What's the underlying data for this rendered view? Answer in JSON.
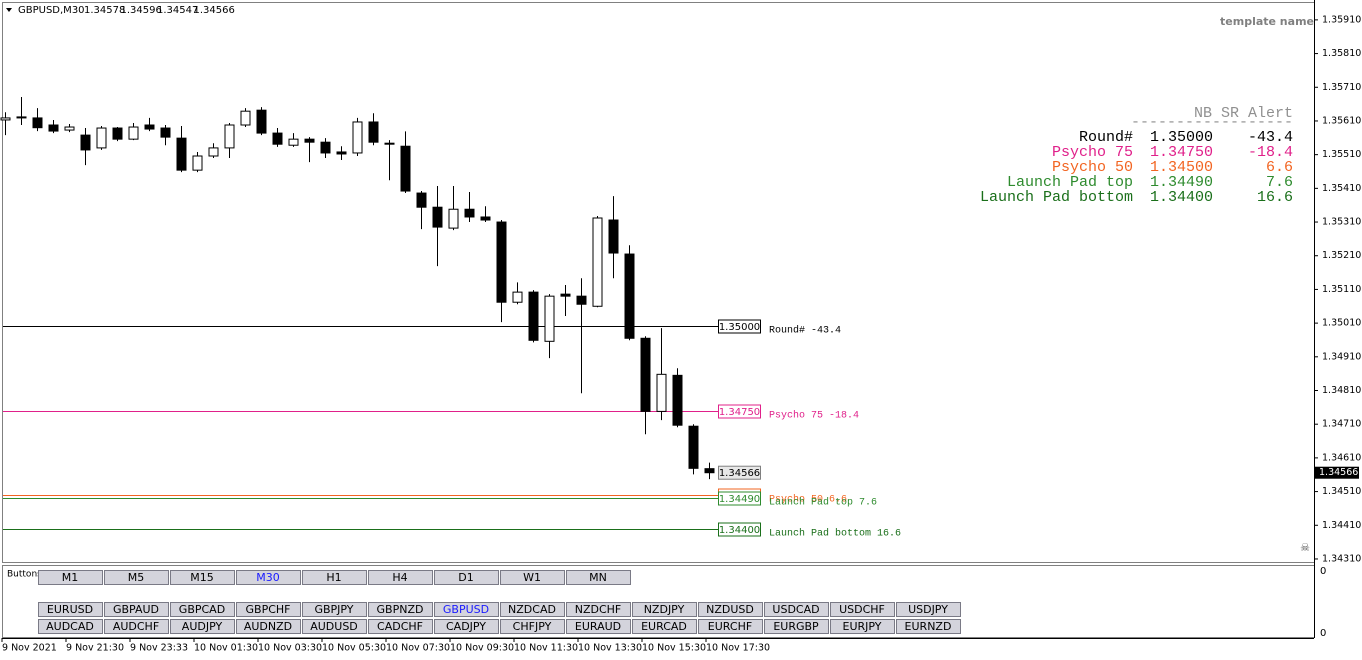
{
  "header": {
    "symbol": "GBPUSD,M30",
    "ohlc": [
      "1.34578",
      "1.34596",
      "1.34547",
      "1.34566"
    ]
  },
  "template_name": "template name",
  "chart_data": {
    "type": "candlestick",
    "ylim": [
      1.34301,
      1.35969
    ],
    "yticks": [
      {
        "value": 1.3591,
        "label": "1.35910"
      },
      {
        "value": 1.3581,
        "label": "1.35810"
      },
      {
        "value": 1.3571,
        "label": "1.35710"
      },
      {
        "value": 1.3561,
        "label": "1.35610"
      },
      {
        "value": 1.3551,
        "label": "1.35510"
      },
      {
        "value": 1.3541,
        "label": "1.35410"
      },
      {
        "value": 1.3531,
        "label": "1.35310"
      },
      {
        "value": 1.3521,
        "label": "1.35210"
      },
      {
        "value": 1.3511,
        "label": "1.35110"
      },
      {
        "value": 1.3501,
        "label": "1.35010"
      },
      {
        "value": 1.3491,
        "label": "1.34910"
      },
      {
        "value": 1.3481,
        "label": "1.34810"
      },
      {
        "value": 1.3471,
        "label": "1.34710"
      },
      {
        "value": 1.3461,
        "label": "1.34610"
      },
      {
        "value": 1.3451,
        "label": "1.34510"
      },
      {
        "value": 1.3441,
        "label": "1.34410"
      },
      {
        "value": 1.3431,
        "label": "1.34310"
      }
    ],
    "x_labels": [
      "9 Nov 2021",
      "9 Nov 21:30",
      "9 Nov 23:33",
      "10 Nov 01:30",
      "10 Nov 03:30",
      "10 Nov 05:30",
      "10 Nov 07:30",
      "10 Nov 09:30",
      "10 Nov 11:30",
      "10 Nov 13:30",
      "10 Nov 15:30",
      "10 Nov 17:30"
    ],
    "open": [
      1.35613,
      1.35619,
      1.35619,
      1.35598,
      1.35583,
      1.35568,
      1.3553,
      1.35589,
      1.35556,
      1.35598,
      1.35589,
      1.35559,
      1.35464,
      1.35506,
      1.3553,
      1.35598,
      1.35642,
      1.35574,
      1.35538,
      1.35556,
      1.35547,
      1.35518,
      1.35515,
      1.35607,
      1.35544,
      1.35535,
      1.35396,
      1.35354,
      1.35292,
      1.35348,
      1.35325,
      1.3531,
      1.35072,
      1.35102,
      1.34956,
      1.35096,
      1.3509,
      1.3506,
      1.35316,
      1.35215,
      1.34965,
      1.34748,
      1.34855,
      1.34704,
      1.34578
    ],
    "high": [
      1.35636,
      1.35681,
      1.35648,
      1.35613,
      1.35601,
      1.35589,
      1.35595,
      1.35592,
      1.35604,
      1.35619,
      1.35598,
      1.35595,
      1.35518,
      1.35544,
      1.35604,
      1.35648,
      1.35651,
      1.35589,
      1.35574,
      1.35562,
      1.35559,
      1.35535,
      1.35619,
      1.35633,
      1.35553,
      1.35579,
      1.35402,
      1.35417,
      1.35417,
      1.35399,
      1.35357,
      1.35316,
      1.35131,
      1.35108,
      1.35096,
      1.35123,
      1.35143,
      1.35328,
      1.35387,
      1.35241,
      1.34971,
      1.34995,
      1.34876,
      1.3471,
      1.34596
    ],
    "low": [
      1.35568,
      1.35598,
      1.3558,
      1.35574,
      1.35577,
      1.35479,
      1.35524,
      1.3555,
      1.35553,
      1.3558,
      1.35538,
      1.35458,
      1.35458,
      1.355,
      1.355,
      1.35592,
      1.35568,
      1.35533,
      1.35533,
      1.35488,
      1.355,
      1.35494,
      1.35506,
      1.35538,
      1.35434,
      1.35396,
      1.35289,
      1.35179,
      1.35286,
      1.3531,
      1.3531,
      1.35013,
      1.35066,
      1.34953,
      1.34906,
      1.35031,
      1.34802,
      1.35057,
      1.35143,
      1.34959,
      1.3468,
      1.34722,
      1.34701,
      1.34561,
      1.34547
    ],
    "close": [
      1.35619,
      1.35622,
      1.3559,
      1.3558,
      1.35592,
      1.35524,
      1.35589,
      1.35556,
      1.35592,
      1.35586,
      1.35562,
      1.35464,
      1.35506,
      1.3553,
      1.35598,
      1.35639,
      1.35574,
      1.35541,
      1.35556,
      1.35547,
      1.35515,
      1.35512,
      1.35607,
      1.35547,
      1.35541,
      1.35402,
      1.35354,
      1.35295,
      1.35348,
      1.35325,
      1.35316,
      1.35072,
      1.35102,
      1.34959,
      1.3509,
      1.3509,
      1.35066,
      1.35322,
      1.35218,
      1.34965,
      1.34748,
      1.34858,
      1.34707,
      1.34579,
      1.34566
    ],
    "levels": [
      {
        "name": "Round#",
        "price": 1.35,
        "price_label": "1.35000",
        "distance": -43.4,
        "color": "#000000",
        "text_color": "#000000"
      },
      {
        "name": "Psycho 75",
        "price": 1.3475,
        "price_label": "1.34750",
        "distance": -18.4,
        "color": "#e0208a",
        "text_color": "#e0208a"
      },
      {
        "name": "Psycho 50",
        "price": 1.345,
        "price_label": "1.34500",
        "distance": 6.6,
        "color": "#f26522",
        "text_color": "#f26522"
      },
      {
        "name": "Launch Pad top",
        "price": 1.3449,
        "price_label": "1.34490",
        "distance": 7.6,
        "color": "#2e8b2e",
        "text_color": "#2e8b2e"
      },
      {
        "name": "Launch Pad bottom",
        "price": 1.344,
        "price_label": "1.34400",
        "distance": 16.6,
        "color": "#1a6f1a",
        "text_color": "#1a6f1a"
      }
    ]
  },
  "panel": {
    "title": "NB SR Alert",
    "divider": "------------------"
  },
  "subwindow": {
    "label": "Buttons",
    "axis_labels": [
      "0",
      "0"
    ],
    "timeframes": [
      "M1",
      "M5",
      "M15",
      "M30",
      "H1",
      "H4",
      "D1",
      "W1",
      "MN"
    ],
    "active_timeframe": 3,
    "pairs": [
      [
        "EURUSD",
        "GBPAUD",
        "GBPCAD",
        "GBPCHF",
        "GBPJPY",
        "GBPNZD",
        "GBPUSD",
        "NZDCAD",
        "NZDCHF",
        "NZDJPY",
        "NZDUSD",
        "USDCAD",
        "USDCHF",
        "USDJPY"
      ],
      [
        "AUDCAD",
        "AUDCHF",
        "AUDJPY",
        "AUDNZD",
        "AUDUSD",
        "CADCHF",
        "CADJPY",
        "CHFJPY",
        "EURAUD",
        "EURCAD",
        "EURCHF",
        "EURGBP",
        "EURJPY",
        "EURNZD"
      ]
    ],
    "active_pair": [
      0,
      6
    ]
  }
}
